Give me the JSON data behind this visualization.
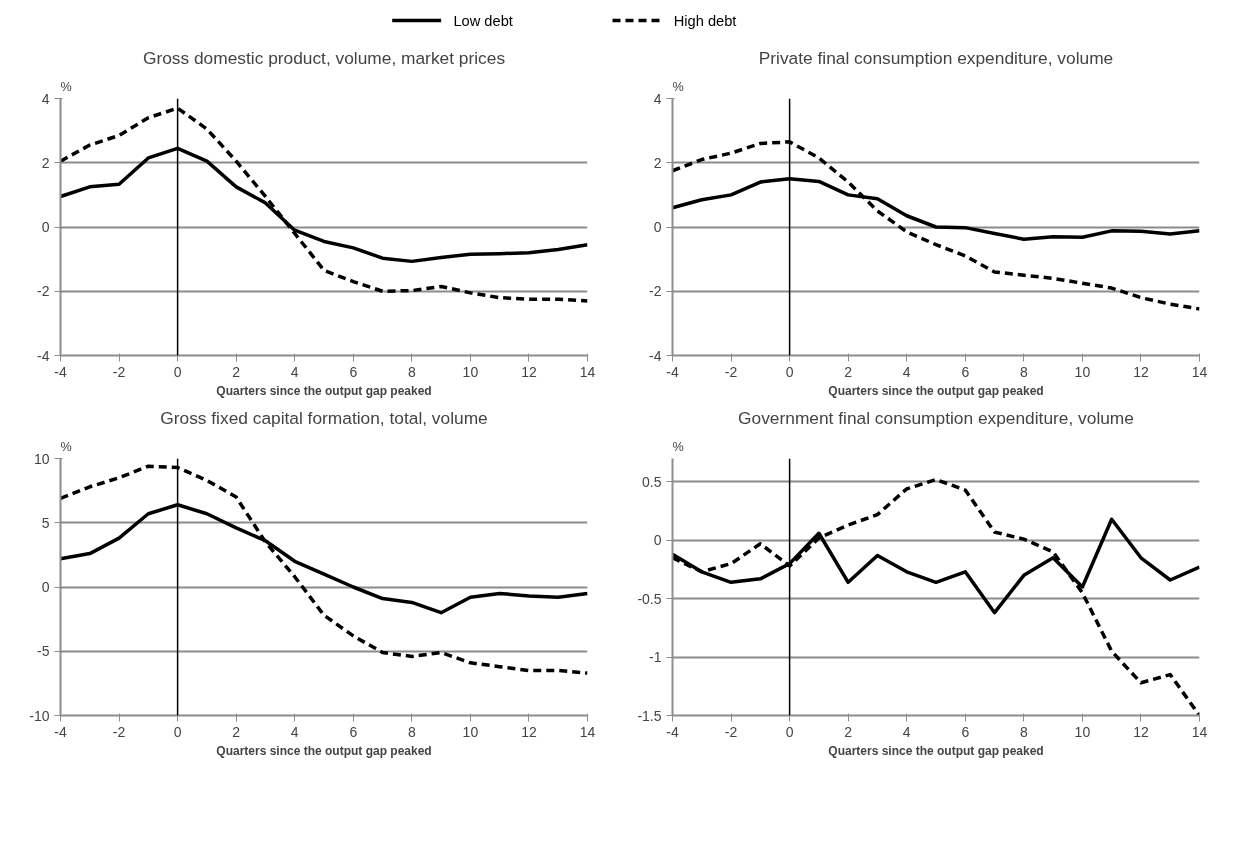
{
  "chart_data": [
    {
      "type": "line",
      "title": "Gross domestic product, volume, market prices",
      "xlabel": "Quarters since the output gap peaked",
      "ylabel": "%",
      "x": [
        -4,
        -3,
        -2,
        -1,
        0,
        1,
        2,
        3,
        4,
        5,
        6,
        7,
        8,
        9,
        10,
        11,
        12,
        13,
        14
      ],
      "xlim": [
        -4,
        14
      ],
      "xticks": [
        -4,
        -2,
        0,
        2,
        4,
        6,
        8,
        10,
        12,
        14
      ],
      "ylim": [
        -4,
        4
      ],
      "yticks": [
        -4,
        -2,
        0,
        2,
        4
      ],
      "grid": "y",
      "legend": "top",
      "ref_lines": [
        {
          "axis": "x",
          "value": 0,
          "color": "#000000"
        }
      ],
      "series": [
        {
          "name": "Low debt",
          "color": "#000000",
          "line_style": "solid",
          "values": [
            0.95,
            1.25,
            1.33,
            2.15,
            2.45,
            2.05,
            1.25,
            0.75,
            -0.1,
            -0.45,
            -0.65,
            -0.97,
            -1.07,
            -0.95,
            -0.85,
            -0.83,
            -0.8,
            -0.7,
            -0.55
          ]
        },
        {
          "name": "High debt",
          "color": "#000000",
          "line_style": "dashed",
          "values": [
            2.05,
            2.55,
            2.85,
            3.4,
            3.7,
            3.05,
            2.05,
            0.95,
            -0.2,
            -1.35,
            -1.7,
            -2.0,
            -1.98,
            -1.85,
            -2.05,
            -2.2,
            -2.25,
            -2.25,
            -2.3
          ]
        }
      ]
    },
    {
      "type": "line",
      "title": "Private final consumption expenditure, volume",
      "xlabel": "Quarters since the output gap peaked",
      "ylabel": "%",
      "x": [
        -4,
        -3,
        -2,
        -1,
        0,
        1,
        2,
        3,
        4,
        5,
        6,
        7,
        8,
        9,
        10,
        11,
        12,
        13,
        14
      ],
      "xlim": [
        -4,
        14
      ],
      "xticks": [
        -4,
        -2,
        0,
        2,
        4,
        6,
        8,
        10,
        12,
        14
      ],
      "ylim": [
        -4,
        4
      ],
      "yticks": [
        -4,
        -2,
        0,
        2,
        4
      ],
      "grid": "y",
      "ref_lines": [
        {
          "axis": "x",
          "value": 0,
          "color": "#000000"
        }
      ],
      "series": [
        {
          "color": "#000000",
          "line_style": "solid",
          "values": [
            0.6,
            0.85,
            1.0,
            1.4,
            1.5,
            1.42,
            1.0,
            0.88,
            0.35,
            0.0,
            -0.02,
            -0.2,
            -0.38,
            -0.3,
            -0.32,
            -0.12,
            -0.13,
            -0.22,
            -0.12
          ]
        },
        {
          "color": "#000000",
          "line_style": "dashed",
          "values": [
            1.75,
            2.1,
            2.3,
            2.6,
            2.65,
            2.15,
            1.4,
            0.5,
            -0.15,
            -0.55,
            -0.9,
            -1.4,
            -1.5,
            -1.6,
            -1.75,
            -1.9,
            -2.2,
            -2.4,
            -2.55
          ]
        }
      ]
    },
    {
      "type": "line",
      "title": "Gross fixed capital formation, total, volume",
      "xlabel": "Quarters since the output gap peaked",
      "ylabel": "%",
      "x": [
        -4,
        -3,
        -2,
        -1,
        0,
        1,
        2,
        3,
        4,
        5,
        6,
        7,
        8,
        9,
        10,
        11,
        12,
        13,
        14
      ],
      "xlim": [
        -4,
        14
      ],
      "xticks": [
        -4,
        -2,
        0,
        2,
        4,
        6,
        8,
        10,
        12,
        14
      ],
      "ylim": [
        -10,
        10
      ],
      "yticks": [
        -10,
        -5,
        0,
        5,
        10
      ],
      "grid": "y",
      "ref_lines": [
        {
          "axis": "x",
          "value": 0,
          "color": "#000000"
        }
      ],
      "series": [
        {
          "color": "#000000",
          "line_style": "solid",
          "values": [
            2.2,
            2.6,
            3.8,
            5.7,
            6.4,
            5.7,
            4.6,
            3.6,
            2.0,
            1.0,
            0.0,
            -0.9,
            -1.2,
            -2.0,
            -0.8,
            -0.5,
            -0.7,
            -0.8,
            -0.5
          ]
        },
        {
          "color": "#000000",
          "line_style": "dashed",
          "values": [
            6.9,
            7.8,
            8.5,
            9.4,
            9.3,
            8.3,
            7.0,
            3.5,
            0.8,
            -2.2,
            -3.8,
            -5.1,
            -5.4,
            -5.1,
            -5.9,
            -6.2,
            -6.5,
            -6.5,
            -6.7
          ]
        }
      ]
    },
    {
      "type": "line",
      "title": "Government final consumption expenditure, volume",
      "xlabel": "Quarters since the output gap peaked",
      "ylabel": "%",
      "x": [
        -4,
        -3,
        -2,
        -1,
        0,
        1,
        2,
        3,
        4,
        5,
        6,
        7,
        8,
        9,
        10,
        11,
        12,
        13,
        14
      ],
      "xlim": [
        -4,
        14
      ],
      "xticks": [
        -4,
        -2,
        0,
        2,
        4,
        6,
        8,
        10,
        12,
        14
      ],
      "ylim": [
        -1.5,
        0.7
      ],
      "yticks": [
        -1.5,
        -1,
        -0.5,
        0,
        0.5
      ],
      "grid": "y",
      "ref_lines": [
        {
          "axis": "x",
          "value": 0,
          "color": "#000000"
        }
      ],
      "series": [
        {
          "color": "#000000",
          "line_style": "solid",
          "values": [
            -0.12,
            -0.27,
            -0.36,
            -0.33,
            -0.2,
            0.06,
            -0.36,
            -0.13,
            -0.27,
            -0.36,
            -0.27,
            -0.62,
            -0.3,
            -0.15,
            -0.4,
            0.18,
            -0.15,
            -0.34,
            -0.23
          ]
        },
        {
          "color": "#000000",
          "line_style": "dashed",
          "values": [
            -0.15,
            -0.27,
            -0.2,
            -0.03,
            -0.22,
            0.02,
            0.13,
            0.22,
            0.44,
            0.52,
            0.43,
            0.07,
            0.01,
            -0.1,
            -0.45,
            -0.95,
            -1.22,
            -1.15,
            -1.5
          ]
        }
      ]
    }
  ]
}
